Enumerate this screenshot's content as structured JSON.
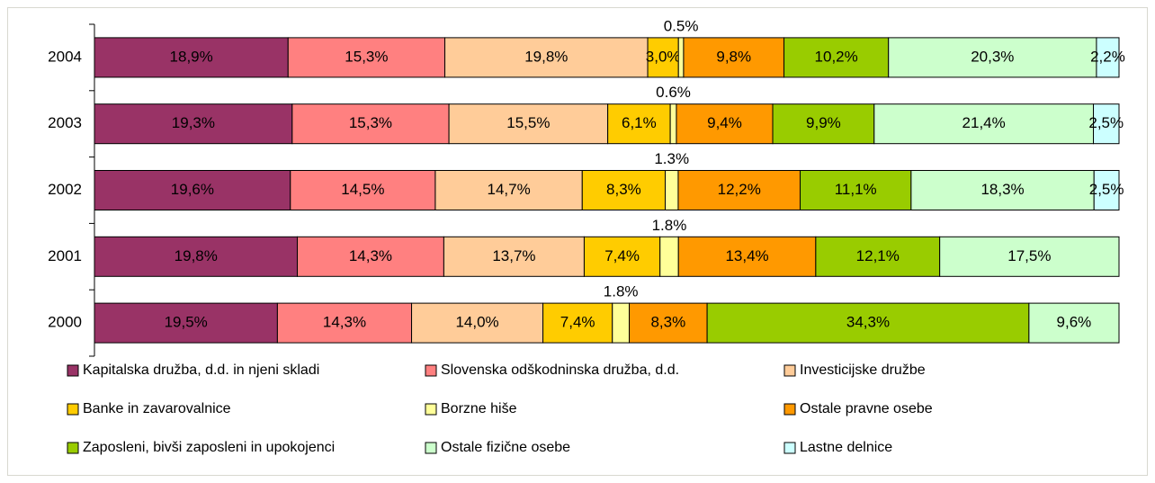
{
  "chart_data": {
    "type": "bar",
    "orientation": "horizontal",
    "stacked": "percent",
    "categories": [
      "2004",
      "2003",
      "2002",
      "2001",
      "2000"
    ],
    "series": [
      {
        "name": "Kapitalska družba, d.d. in njeni skladi",
        "color": "#993366",
        "values": [
          18.9,
          19.3,
          19.6,
          19.8,
          19.5
        ],
        "value_labels": [
          "18,9%",
          "19,3%",
          "19,6%",
          "19,8%",
          "19,5%"
        ]
      },
      {
        "name": "Slovenska odškodninska družba, d.d.",
        "color": "#ff8080",
        "values": [
          15.3,
          15.3,
          14.5,
          14.3,
          14.3
        ],
        "value_labels": [
          "15,3%",
          "15,3%",
          "14,5%",
          "14,3%",
          "14,3%"
        ]
      },
      {
        "name": "Investicijske družbe",
        "color": "#ffcc99",
        "values": [
          19.8,
          15.5,
          14.7,
          13.7,
          14.0
        ],
        "value_labels": [
          "19,8%",
          "15,5%",
          "14,7%",
          "13,7%",
          "14,0%"
        ]
      },
      {
        "name": "Banke in zavarovalnice",
        "color": "#ffcc00",
        "values": [
          3.0,
          6.1,
          8.3,
          7.4,
          7.4
        ],
        "value_labels": [
          "3,0%",
          "6,1%",
          "8,3%",
          "7,4%",
          "7,4%"
        ]
      },
      {
        "name": "Borzne hiše",
        "color": "#ffff99",
        "values": [
          0.5,
          0.6,
          1.3,
          1.8,
          1.8
        ],
        "value_labels": [
          "0.5%",
          "0.6%",
          "1.3%",
          "1.8%",
          "1.8%"
        ]
      },
      {
        "name": "Ostale pravne osebe",
        "color": "#ff9900",
        "values": [
          9.8,
          9.4,
          12.2,
          13.4,
          8.3
        ],
        "value_labels": [
          "9,8%",
          "9,4%",
          "12,2%",
          "13,4%",
          "8,3%"
        ]
      },
      {
        "name": "Zaposleni, bivši zaposleni in upokojenci",
        "color": "#99cc00",
        "values": [
          10.2,
          9.9,
          11.1,
          12.1,
          34.3
        ],
        "value_labels": [
          "10,2%",
          "9,9%",
          "11,1%",
          "12,1%",
          "34,3%"
        ]
      },
      {
        "name": "Ostale fizične osebe",
        "color": "#ccffcc",
        "values": [
          20.3,
          21.4,
          18.3,
          17.5,
          9.6
        ],
        "value_labels": [
          "20,3%",
          "21,4%",
          "18,3%",
          "17,5%",
          "9,6%"
        ]
      },
      {
        "name": "Lastne delnice",
        "color": "#ccffff",
        "values": [
          2.2,
          2.5,
          2.5,
          null,
          null
        ],
        "value_labels": [
          "2,2%",
          "2,5%",
          "2,5%",
          null,
          null
        ]
      }
    ],
    "legend": "bottom"
  }
}
